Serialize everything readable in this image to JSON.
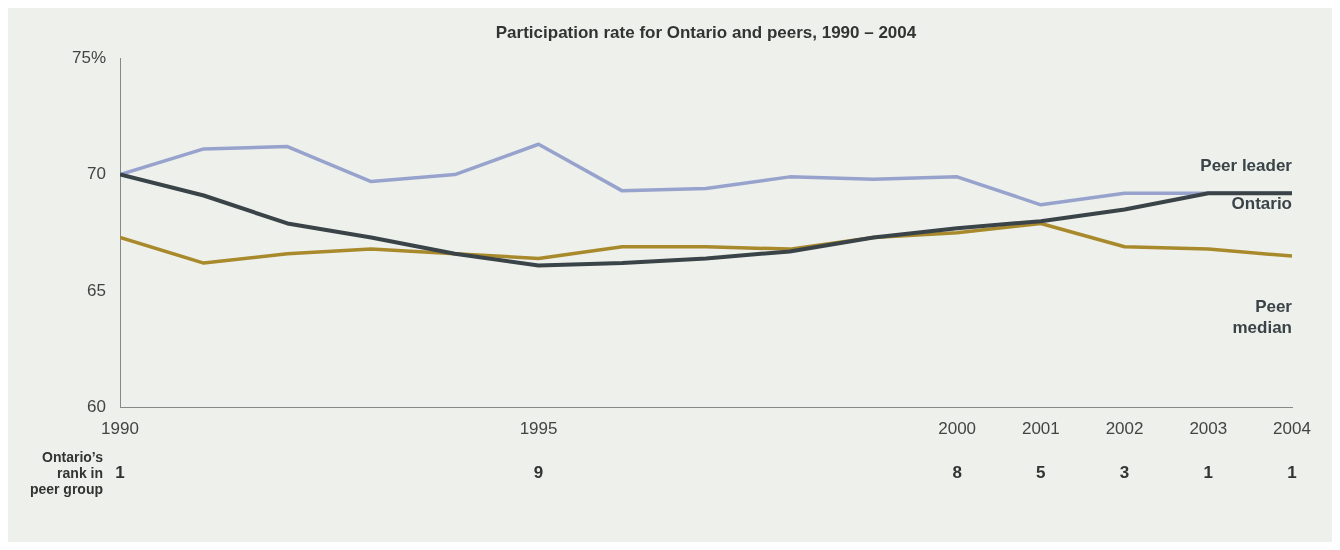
{
  "chart_data": {
    "type": "line",
    "title": "Participation rate for Ontario and peers, 1990 – 2004",
    "x": [
      1990,
      1991,
      1992,
      1993,
      1994,
      1995,
      1996,
      1997,
      1998,
      1999,
      2000,
      2001,
      2002,
      2003,
      2004
    ],
    "series": [
      {
        "name": "Peer leader",
        "color": "#97a3cc",
        "values": [
          70,
          71.1,
          71.2,
          69.7,
          70,
          71.3,
          69.3,
          69.4,
          69.9,
          69.8,
          69.9,
          68.7,
          69.2,
          69.2,
          69.2
        ]
      },
      {
        "name": "Ontario",
        "color": "#3a4448",
        "values": [
          70,
          69.1,
          67.9,
          67.3,
          66.6,
          66.1,
          66.2,
          66.4,
          66.7,
          67.3,
          67.7,
          68.0,
          68.5,
          69.2,
          69.2
        ]
      },
      {
        "name": "Peer median",
        "color": "#a88a2c",
        "values": [
          67.3,
          66.2,
          66.6,
          66.8,
          66.6,
          66.4,
          66.9,
          66.9,
          66.8,
          67.3,
          67.5,
          67.9,
          66.9,
          66.8,
          66.5
        ]
      }
    ],
    "xlim": [
      1990,
      2004
    ],
    "xticks": [
      1990,
      1995,
      2000,
      2001,
      2002,
      2003,
      2004
    ],
    "ylim": [
      60,
      75
    ],
    "yticks": [
      60,
      65,
      70,
      {
        "value": 75,
        "label": "75%"
      }
    ],
    "grid": false,
    "legend": false,
    "marker": "none",
    "line_style": "solid",
    "annotations": [
      "Ontario’s rank in peer group",
      "1",
      "9",
      "8",
      "5",
      "3",
      "1",
      "1"
    ]
  }
}
